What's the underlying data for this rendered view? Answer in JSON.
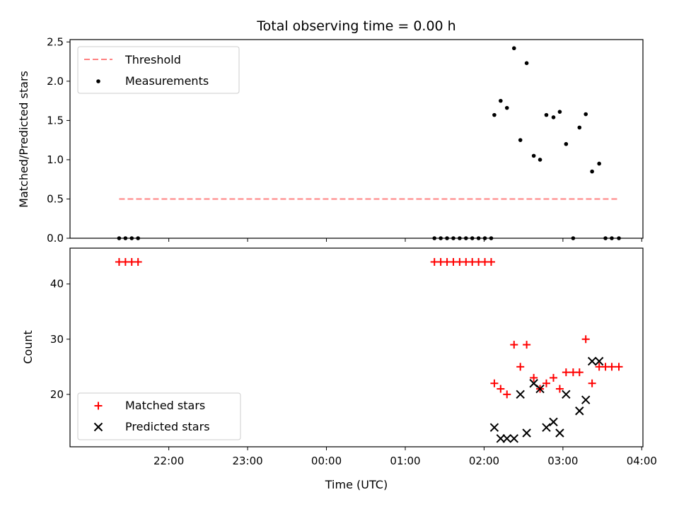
{
  "chart_data": [
    {
      "type": "scatter",
      "title": "Total observing time = 0.00 h",
      "xlabel": "",
      "ylabel": "Matched/Predicted stars",
      "ylim": [
        0,
        2.53
      ],
      "y_ticks": [
        "0.0",
        "0.5",
        "1.0",
        "1.5",
        "2.0",
        "2.5"
      ],
      "legend_position": "upper-left",
      "threshold": {
        "name": "Threshold",
        "value": 0.5,
        "x_start": -2.63,
        "x_end": 3.71,
        "color": "#ff8080"
      },
      "series": [
        {
          "name": "Measurements",
          "color": "#000000",
          "points": [
            [
              -2.63,
              0
            ],
            [
              -2.55,
              0
            ],
            [
              -2.47,
              0
            ],
            [
              -2.39,
              0
            ],
            [
              1.37,
              0
            ],
            [
              1.45,
              0
            ],
            [
              1.53,
              0
            ],
            [
              1.61,
              0
            ],
            [
              1.69,
              0
            ],
            [
              1.77,
              0
            ],
            [
              1.85,
              0
            ],
            [
              1.93,
              0
            ],
            [
              2.01,
              0
            ],
            [
              2.09,
              0
            ],
            [
              2.13,
              1.57
            ],
            [
              2.21,
              1.75
            ],
            [
              2.29,
              1.66
            ],
            [
              2.38,
              2.42
            ],
            [
              2.46,
              1.25
            ],
            [
              2.54,
              2.23
            ],
            [
              2.63,
              1.05
            ],
            [
              2.71,
              1.0
            ],
            [
              2.79,
              1.57
            ],
            [
              2.88,
              1.54
            ],
            [
              2.96,
              1.61
            ],
            [
              3.04,
              1.2
            ],
            [
              3.13,
              0
            ],
            [
              3.21,
              1.41
            ],
            [
              3.29,
              1.58
            ],
            [
              3.37,
              0.85
            ],
            [
              3.46,
              0.95
            ],
            [
              3.54,
              0
            ],
            [
              3.62,
              0
            ],
            [
              3.71,
              0
            ]
          ]
        }
      ]
    },
    {
      "type": "scatter",
      "title": "",
      "xlabel": "Time (UTC)",
      "ylabel": "Count",
      "ylim": [
        10.5,
        46.5
      ],
      "y_ticks": [
        "20",
        "30",
        "40"
      ],
      "x_ticks": [
        "22:00",
        "23:00",
        "00:00",
        "01:00",
        "02:00",
        "03:00",
        "04:00"
      ],
      "x_unit": "hours from 00:00 UTC",
      "legend_position": "lower-left",
      "series": [
        {
          "name": "Matched stars",
          "marker": "+",
          "color": "#ff0000",
          "points": [
            [
              -2.63,
              44
            ],
            [
              -2.55,
              44
            ],
            [
              -2.47,
              44
            ],
            [
              -2.39,
              44
            ],
            [
              1.37,
              44
            ],
            [
              1.45,
              44
            ],
            [
              1.53,
              44
            ],
            [
              1.61,
              44
            ],
            [
              1.69,
              44
            ],
            [
              1.77,
              44
            ],
            [
              1.85,
              44
            ],
            [
              1.93,
              44
            ],
            [
              2.01,
              44
            ],
            [
              2.09,
              44
            ],
            [
              2.13,
              22
            ],
            [
              2.21,
              21
            ],
            [
              2.29,
              20
            ],
            [
              2.38,
              29
            ],
            [
              2.46,
              25
            ],
            [
              2.54,
              29
            ],
            [
              2.63,
              23
            ],
            [
              2.71,
              21
            ],
            [
              2.79,
              22
            ],
            [
              2.88,
              23
            ],
            [
              2.96,
              21
            ],
            [
              3.04,
              24
            ],
            [
              3.13,
              24
            ],
            [
              3.21,
              24
            ],
            [
              3.29,
              30
            ],
            [
              3.37,
              22
            ],
            [
              3.46,
              25
            ],
            [
              3.54,
              25
            ],
            [
              3.62,
              25
            ],
            [
              3.71,
              25
            ]
          ]
        },
        {
          "name": "Predicted stars",
          "marker": "x",
          "color": "#000000",
          "points": [
            [
              2.13,
              14
            ],
            [
              2.21,
              12
            ],
            [
              2.29,
              12
            ],
            [
              2.38,
              12
            ],
            [
              2.46,
              20
            ],
            [
              2.54,
              13
            ],
            [
              2.63,
              22
            ],
            [
              2.71,
              21
            ],
            [
              2.79,
              14
            ],
            [
              2.88,
              15
            ],
            [
              2.96,
              13
            ],
            [
              3.04,
              20
            ],
            [
              3.21,
              17
            ],
            [
              3.29,
              19
            ],
            [
              3.37,
              26
            ],
            [
              3.46,
              26
            ]
          ]
        }
      ]
    }
  ]
}
